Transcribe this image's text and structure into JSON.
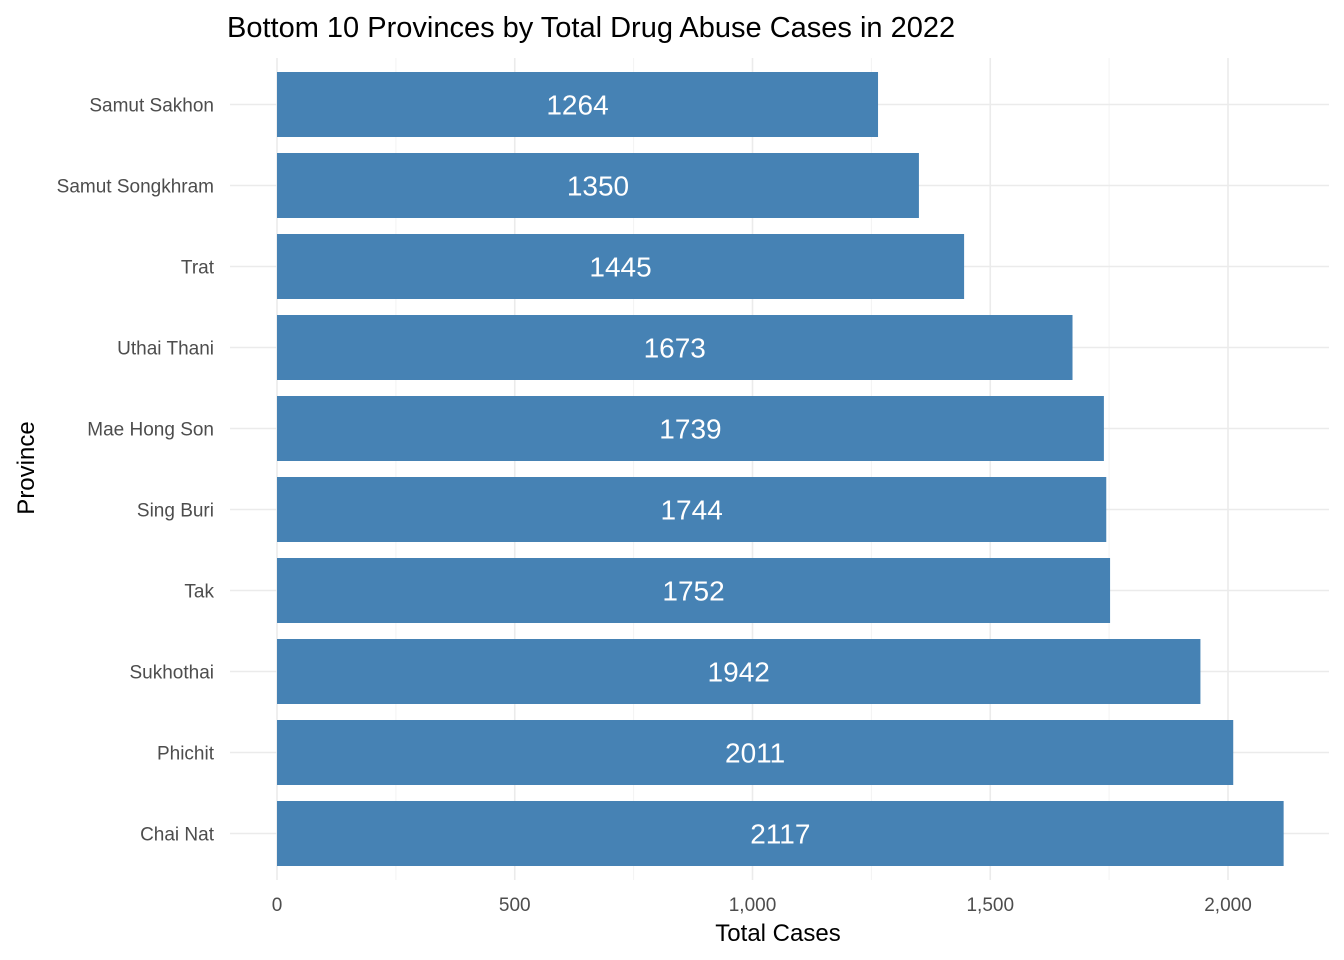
{
  "chart_data": {
    "type": "bar",
    "orientation": "horizontal",
    "title": "Bottom 10 Provinces by Total Drug Abuse Cases in 2022",
    "xlabel": "Total Cases",
    "ylabel": "Province",
    "categories": [
      "Samut Sakhon",
      "Samut Songkhram",
      "Trat",
      "Uthai Thani",
      "Mae Hong Son",
      "Sing Buri",
      "Tak",
      "Sukhothai",
      "Phichit",
      "Chai Nat"
    ],
    "values": [
      1264,
      1350,
      1445,
      1673,
      1739,
      1744,
      1752,
      1942,
      2011,
      2117
    ],
    "data_labels": [
      "1264",
      "1350",
      "1445",
      "1673",
      "1739",
      "1744",
      "1752",
      "1942",
      "2011",
      "2117"
    ],
    "xlim": [
      0,
      2200
    ],
    "x_ticks": [
      0,
      500,
      1000,
      1500,
      2000
    ],
    "x_tick_labels": [
      "0",
      "500",
      "1,000",
      "1,500",
      "2,000"
    ],
    "bar_color": "#4682B4",
    "grid": true,
    "legend": "none"
  }
}
